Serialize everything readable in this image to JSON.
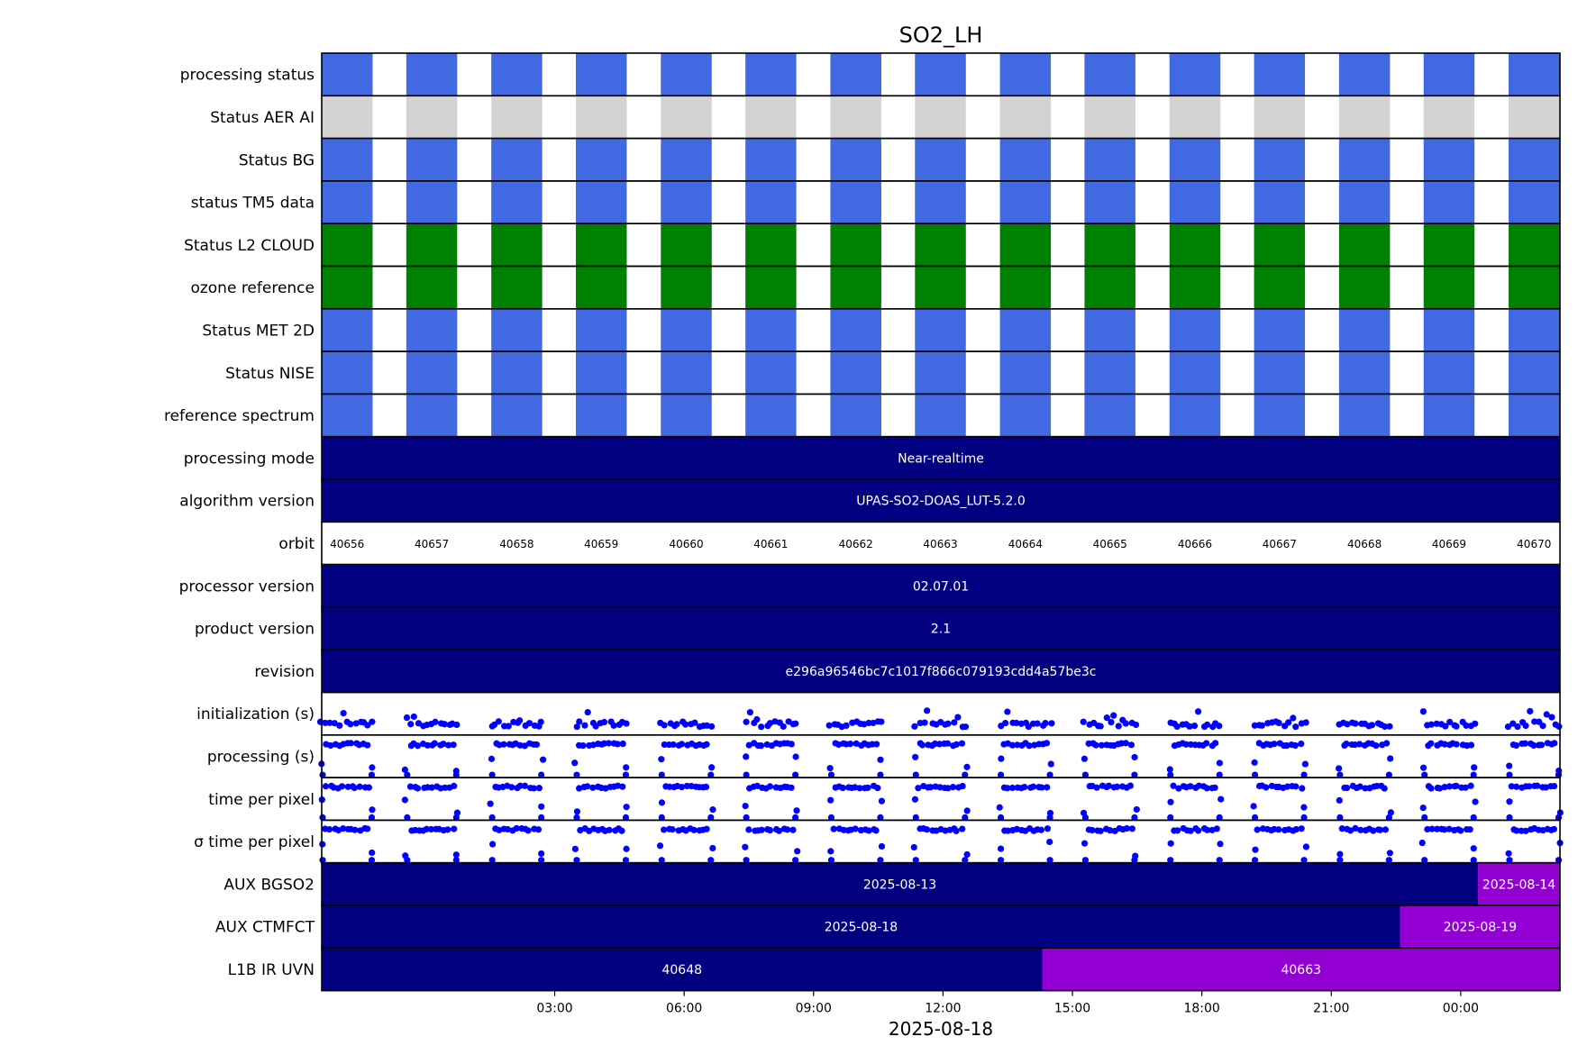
{
  "chart_data": {
    "type": "timeline",
    "title": "SO2_LH",
    "xlabel": "2025-08-18",
    "x_ticks": [
      "03:00",
      "06:00",
      "09:00",
      "12:00",
      "15:00",
      "18:00",
      "21:00",
      "00:00"
    ],
    "x_range_hours": [
      -2.4,
      26.3
    ],
    "orbit_numbers": [
      "40656",
      "40657",
      "40658",
      "40659",
      "40660",
      "40661",
      "40662",
      "40663",
      "40664",
      "40665",
      "40666",
      "40667",
      "40668",
      "40669",
      "40670"
    ],
    "orbit_start_hours": [
      -2.4,
      -0.44,
      1.53,
      3.49,
      5.46,
      7.42,
      9.39,
      11.35,
      13.32,
      15.28,
      17.25,
      19.21,
      21.18,
      23.14,
      25.11
    ],
    "processing_duration_hours": 1.18,
    "rows": [
      {
        "label": "processing status",
        "kind": "status",
        "color": "#4169e1"
      },
      {
        "label": "Status AER AI",
        "kind": "status",
        "color": "#d3d3d3"
      },
      {
        "label": "Status BG",
        "kind": "status",
        "color": "#4169e1"
      },
      {
        "label": "status TM5 data",
        "kind": "status",
        "color": "#4169e1"
      },
      {
        "label": "Status L2  CLOUD",
        "kind": "status",
        "color": "#008000"
      },
      {
        "label": "ozone reference",
        "kind": "status",
        "color": "#008000"
      },
      {
        "label": "Status MET 2D",
        "kind": "status",
        "color": "#4169e1"
      },
      {
        "label": "Status NISE",
        "kind": "status",
        "color": "#4169e1"
      },
      {
        "label": "reference spectrum",
        "kind": "status",
        "color": "#4169e1"
      },
      {
        "label": "processing mode",
        "kind": "span",
        "segments": [
          {
            "text": "Near-realtime",
            "start": -2.4,
            "end": 26.3,
            "color": "#000080"
          }
        ]
      },
      {
        "label": "algorithm version",
        "kind": "span",
        "segments": [
          {
            "text": "UPAS-SO2-DOAS_LUT-5.2.0",
            "start": -2.4,
            "end": 26.3,
            "color": "#000080"
          }
        ]
      },
      {
        "label": "orbit",
        "kind": "orbit"
      },
      {
        "label": "processor version",
        "kind": "span",
        "segments": [
          {
            "text": "02.07.01",
            "start": -2.4,
            "end": 26.3,
            "color": "#000080"
          }
        ]
      },
      {
        "label": "product version",
        "kind": "span",
        "segments": [
          {
            "text": "2.1",
            "start": -2.4,
            "end": 26.3,
            "color": "#000080"
          }
        ]
      },
      {
        "label": "revision",
        "kind": "span",
        "segments": [
          {
            "text": "e296a96546bc7c1017f866c079193cdd4a57be3c",
            "start": -2.4,
            "end": 26.3,
            "color": "#000080"
          }
        ]
      },
      {
        "label": "initialization (s)",
        "kind": "scatter",
        "pattern": "init"
      },
      {
        "label": "processing (s)",
        "kind": "scatter",
        "pattern": "proc"
      },
      {
        "label": "time per pixel",
        "kind": "scatter",
        "pattern": "proc"
      },
      {
        "label": "σ time per pixel",
        "kind": "scatter",
        "pattern": "proc"
      },
      {
        "label": "AUX BGSO2",
        "kind": "span",
        "segments": [
          {
            "text": "2025-08-13",
            "start": -2.4,
            "end": 24.4,
            "color": "#000080"
          },
          {
            "text": "2025-08-14",
            "start": 24.4,
            "end": 26.3,
            "color": "#9400d3"
          }
        ]
      },
      {
        "label": "AUX CTMFCT",
        "kind": "span",
        "segments": [
          {
            "text": "2025-08-18",
            "start": -2.4,
            "end": 22.6,
            "color": "#000080"
          },
          {
            "text": "2025-08-19",
            "start": 22.6,
            "end": 26.3,
            "color": "#9400d3"
          }
        ]
      },
      {
        "label": "L1B IR UVN",
        "kind": "span",
        "segments": [
          {
            "text": "40648",
            "start": -2.4,
            "end": 14.3,
            "color": "#000080"
          },
          {
            "text": "40663",
            "start": 14.3,
            "end": 26.3,
            "color": "#9400d3"
          }
        ]
      }
    ],
    "scatter_color": "#0000ff"
  }
}
